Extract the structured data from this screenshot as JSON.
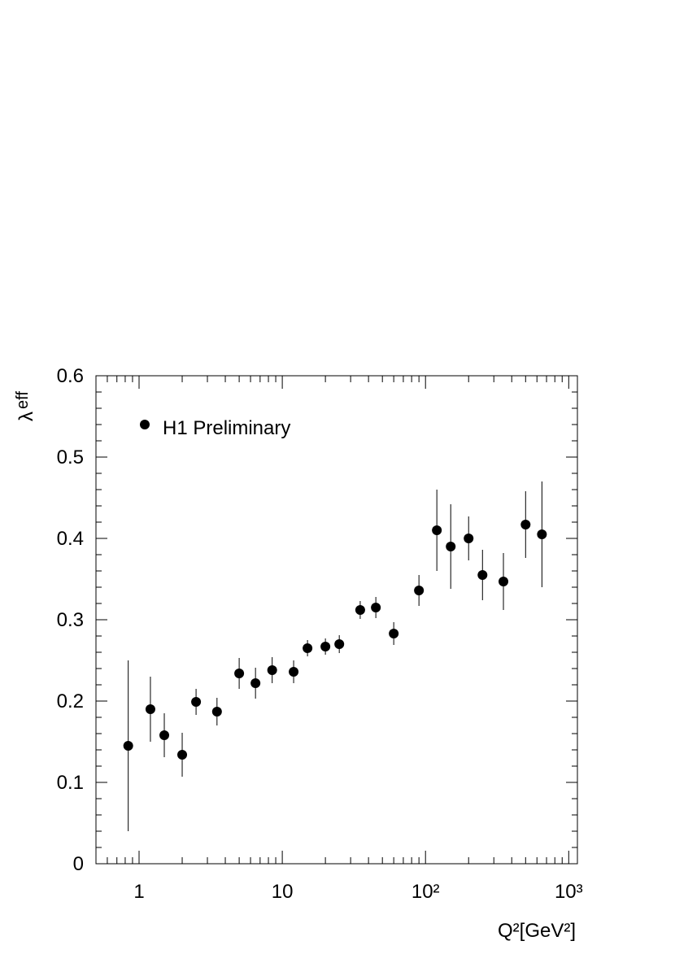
{
  "chart_data": {
    "type": "scatter",
    "xlabel": "Q²[GeV²]",
    "ylabel": {
      "symbol": "λ",
      "subscript": "eff"
    },
    "xscale": "log",
    "xlim": [
      0.5,
      1150
    ],
    "ylim": [
      0,
      0.6
    ],
    "xticks": [
      1,
      10,
      {
        "value": 100,
        "label": "10²"
      },
      {
        "value": 1000,
        "label": "10³"
      }
    ],
    "yticks": [
      0,
      0.1,
      0.2,
      0.3,
      0.4,
      0.5,
      0.6
    ],
    "grid": false,
    "legend": "upper left",
    "series": [
      {
        "name": "H1 Preliminary",
        "color": "#000000",
        "x": [
          0.84,
          1.2,
          1.5,
          2.0,
          2.5,
          3.5,
          5.0,
          6.5,
          8.5,
          12,
          15,
          20,
          25,
          35,
          45,
          60,
          90,
          120,
          150,
          200,
          250,
          350,
          500,
          650
        ],
        "values": [
          0.145,
          0.19,
          0.158,
          0.134,
          0.199,
          0.187,
          0.234,
          0.222,
          0.238,
          0.236,
          0.265,
          0.267,
          0.27,
          0.312,
          0.315,
          0.283,
          0.336,
          0.41,
          0.39,
          0.4,
          0.355,
          0.347,
          0.417,
          0.405
        ],
        "errors": [
          0.105,
          0.04,
          0.027,
          0.027,
          0.016,
          0.017,
          0.019,
          0.019,
          0.016,
          0.014,
          0.01,
          0.01,
          0.011,
          0.011,
          0.013,
          0.014,
          0.019,
          0.05,
          0.052,
          0.027,
          0.031,
          0.035,
          0.041,
          0.065
        ]
      }
    ]
  }
}
